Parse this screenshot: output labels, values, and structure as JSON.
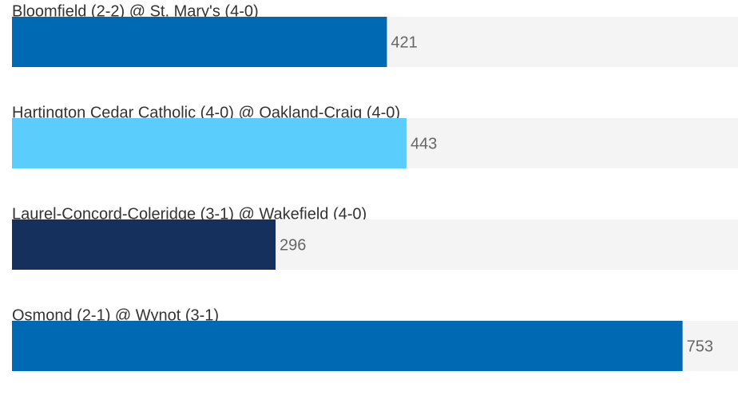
{
  "chart_data": {
    "type": "bar",
    "orientation": "horizontal",
    "categories": [
      "Bloomfield (2-2) @ St. Mary's (4-0)",
      "Hartington Cedar Catholic (4-0) @ Oakland-Craig (4-0)",
      "Laurel-Concord-Coleridge (3-1) @ Wakefield (4-0)",
      "Osmond (2-1) @ Wynot (3-1)"
    ],
    "values": [
      421,
      443,
      296,
      753
    ],
    "colors": [
      "#0069b4",
      "#5bcdfc",
      "#16305e",
      "#0069b4"
    ]
  }
}
